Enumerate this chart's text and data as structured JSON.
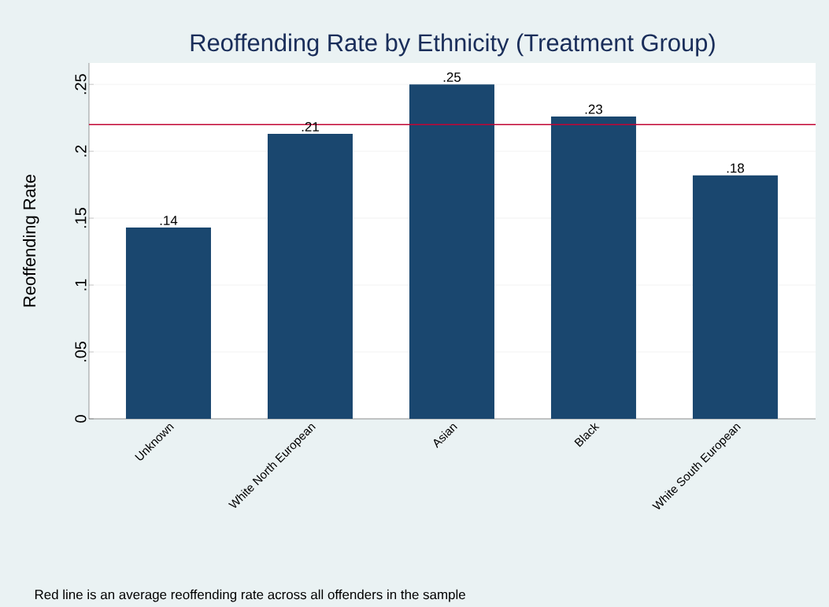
{
  "chart_data": {
    "type": "bar",
    "title": "Reoffending Rate by Ethnicity (Treatment Group)",
    "ylabel": "Reoffending Rate",
    "categories": [
      "Unknown",
      "White North European",
      "Asian",
      "Black",
      "White South European"
    ],
    "values": [
      0.143,
      0.213,
      0.25,
      0.226,
      0.182
    ],
    "value_labels": [
      ".14",
      ".21",
      ".25",
      ".23",
      ".18"
    ],
    "color": "#1a476f",
    "ylim": [
      0,
      0.266
    ],
    "yticks": [
      0,
      {
        "value": 0.05,
        "label": ".05"
      },
      {
        "value": 0.1,
        "label": ".1"
      },
      {
        "value": 0.15,
        "label": ".15"
      },
      {
        "value": 0.2,
        "label": ".2"
      },
      {
        "value": 0.25,
        "label": ".25"
      }
    ],
    "grid": "y",
    "ref_lines": [
      {
        "axis": "y",
        "value": 0.22,
        "color": "#c10534"
      }
    ],
    "annotations": [
      "Red line is an average reoffending rate across all offenders in the sample"
    ]
  }
}
